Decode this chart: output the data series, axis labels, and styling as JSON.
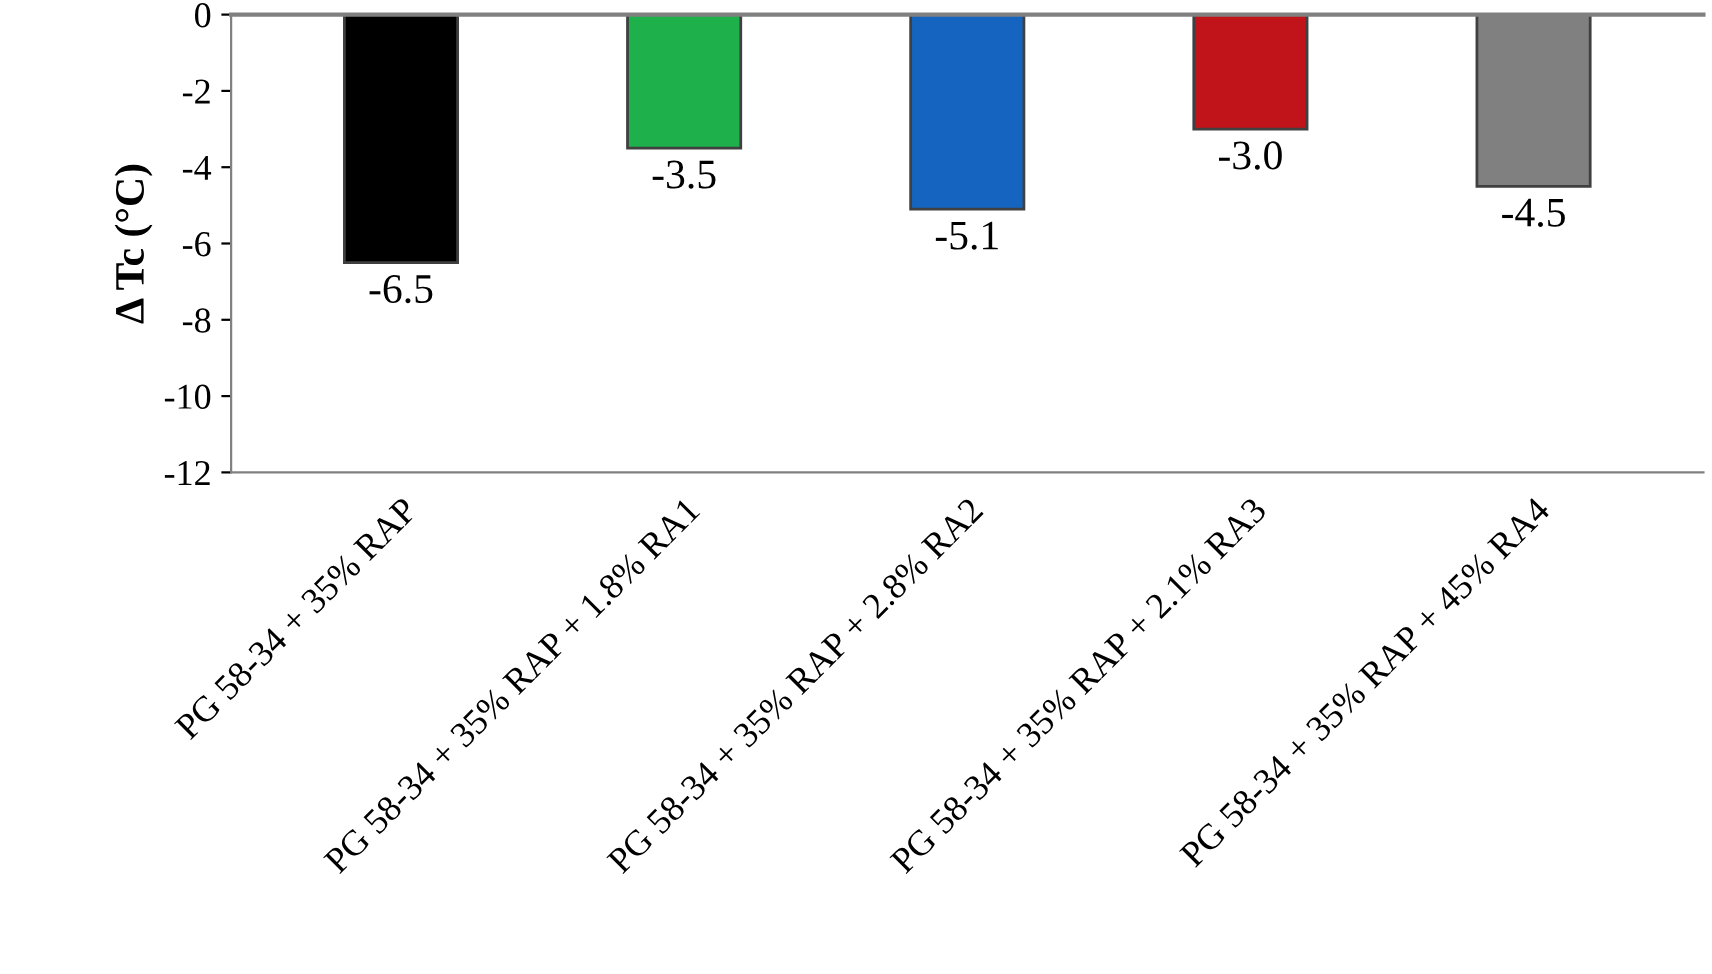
{
  "chart_data": {
    "type": "bar",
    "ylabel": "Δ Tc (°C)",
    "categories": [
      "PG 58-34 + 35% RAP",
      "PG 58-34 + 35% RAP + 1.8% RA1",
      "PG 58-34 + 35% RAP + 2.8% RA2",
      "PG 58-34 + 35% RAP + 2.1% RA3",
      "PG 58-34 + 35% RAP + 45% RA4"
    ],
    "values": [
      -6.5,
      -3.5,
      -5.1,
      -3.0,
      -4.5
    ],
    "value_labels": [
      "-6.5",
      "-3.5",
      "-5.1",
      "-3.0",
      "-4.5"
    ],
    "colors": [
      "#000000",
      "#1db04b",
      "#1565c0",
      "#c0141a",
      "#808080"
    ],
    "ylim": [
      -12,
      0
    ],
    "yticks": [
      -12,
      -10,
      -8,
      -6,
      -4,
      -2,
      0
    ],
    "grid": false,
    "legend": false
  }
}
